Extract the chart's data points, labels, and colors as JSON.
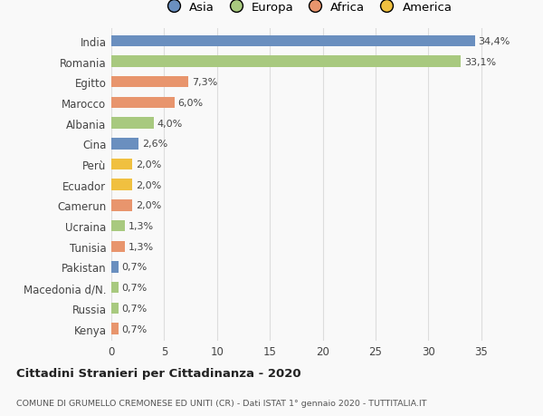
{
  "countries": [
    "Kenya",
    "Russia",
    "Macedonia d/N.",
    "Pakistan",
    "Tunisia",
    "Ucraina",
    "Camerun",
    "Ecuador",
    "Perù",
    "Cina",
    "Albania",
    "Marocco",
    "Egitto",
    "Romania",
    "India"
  ],
  "values": [
    0.7,
    0.7,
    0.7,
    0.7,
    1.3,
    1.3,
    2.0,
    2.0,
    2.0,
    2.6,
    4.0,
    6.0,
    7.3,
    33.1,
    34.4
  ],
  "labels": [
    "0,7%",
    "0,7%",
    "0,7%",
    "0,7%",
    "1,3%",
    "1,3%",
    "2,0%",
    "2,0%",
    "2,0%",
    "2,6%",
    "4,0%",
    "6,0%",
    "7,3%",
    "33,1%",
    "34,4%"
  ],
  "colors": [
    "#E8956D",
    "#A8C97F",
    "#A8C97F",
    "#6A8FBF",
    "#E8956D",
    "#A8C97F",
    "#E8956D",
    "#F0C040",
    "#F0C040",
    "#6A8FBF",
    "#A8C97F",
    "#E8956D",
    "#E8956D",
    "#A8C97F",
    "#6A8FBF"
  ],
  "legend_order": [
    "Asia",
    "Europa",
    "Africa",
    "America"
  ],
  "legend_colors": {
    "Asia": "#6A8FBF",
    "Europa": "#A8C97F",
    "Africa": "#E8956D",
    "America": "#F0C040"
  },
  "title1": "Cittadini Stranieri per Cittadinanza - 2020",
  "title2": "COMUNE DI GRUMELLO CREMONESE ED UNITI (CR) - Dati ISTAT 1° gennaio 2020 - TUTTITALIA.IT",
  "xlim": [
    0,
    37
  ],
  "xticks": [
    0,
    5,
    10,
    15,
    20,
    25,
    30,
    35
  ],
  "background_color": "#f9f9f9",
  "grid_color": "#dddddd",
  "bar_height": 0.55
}
